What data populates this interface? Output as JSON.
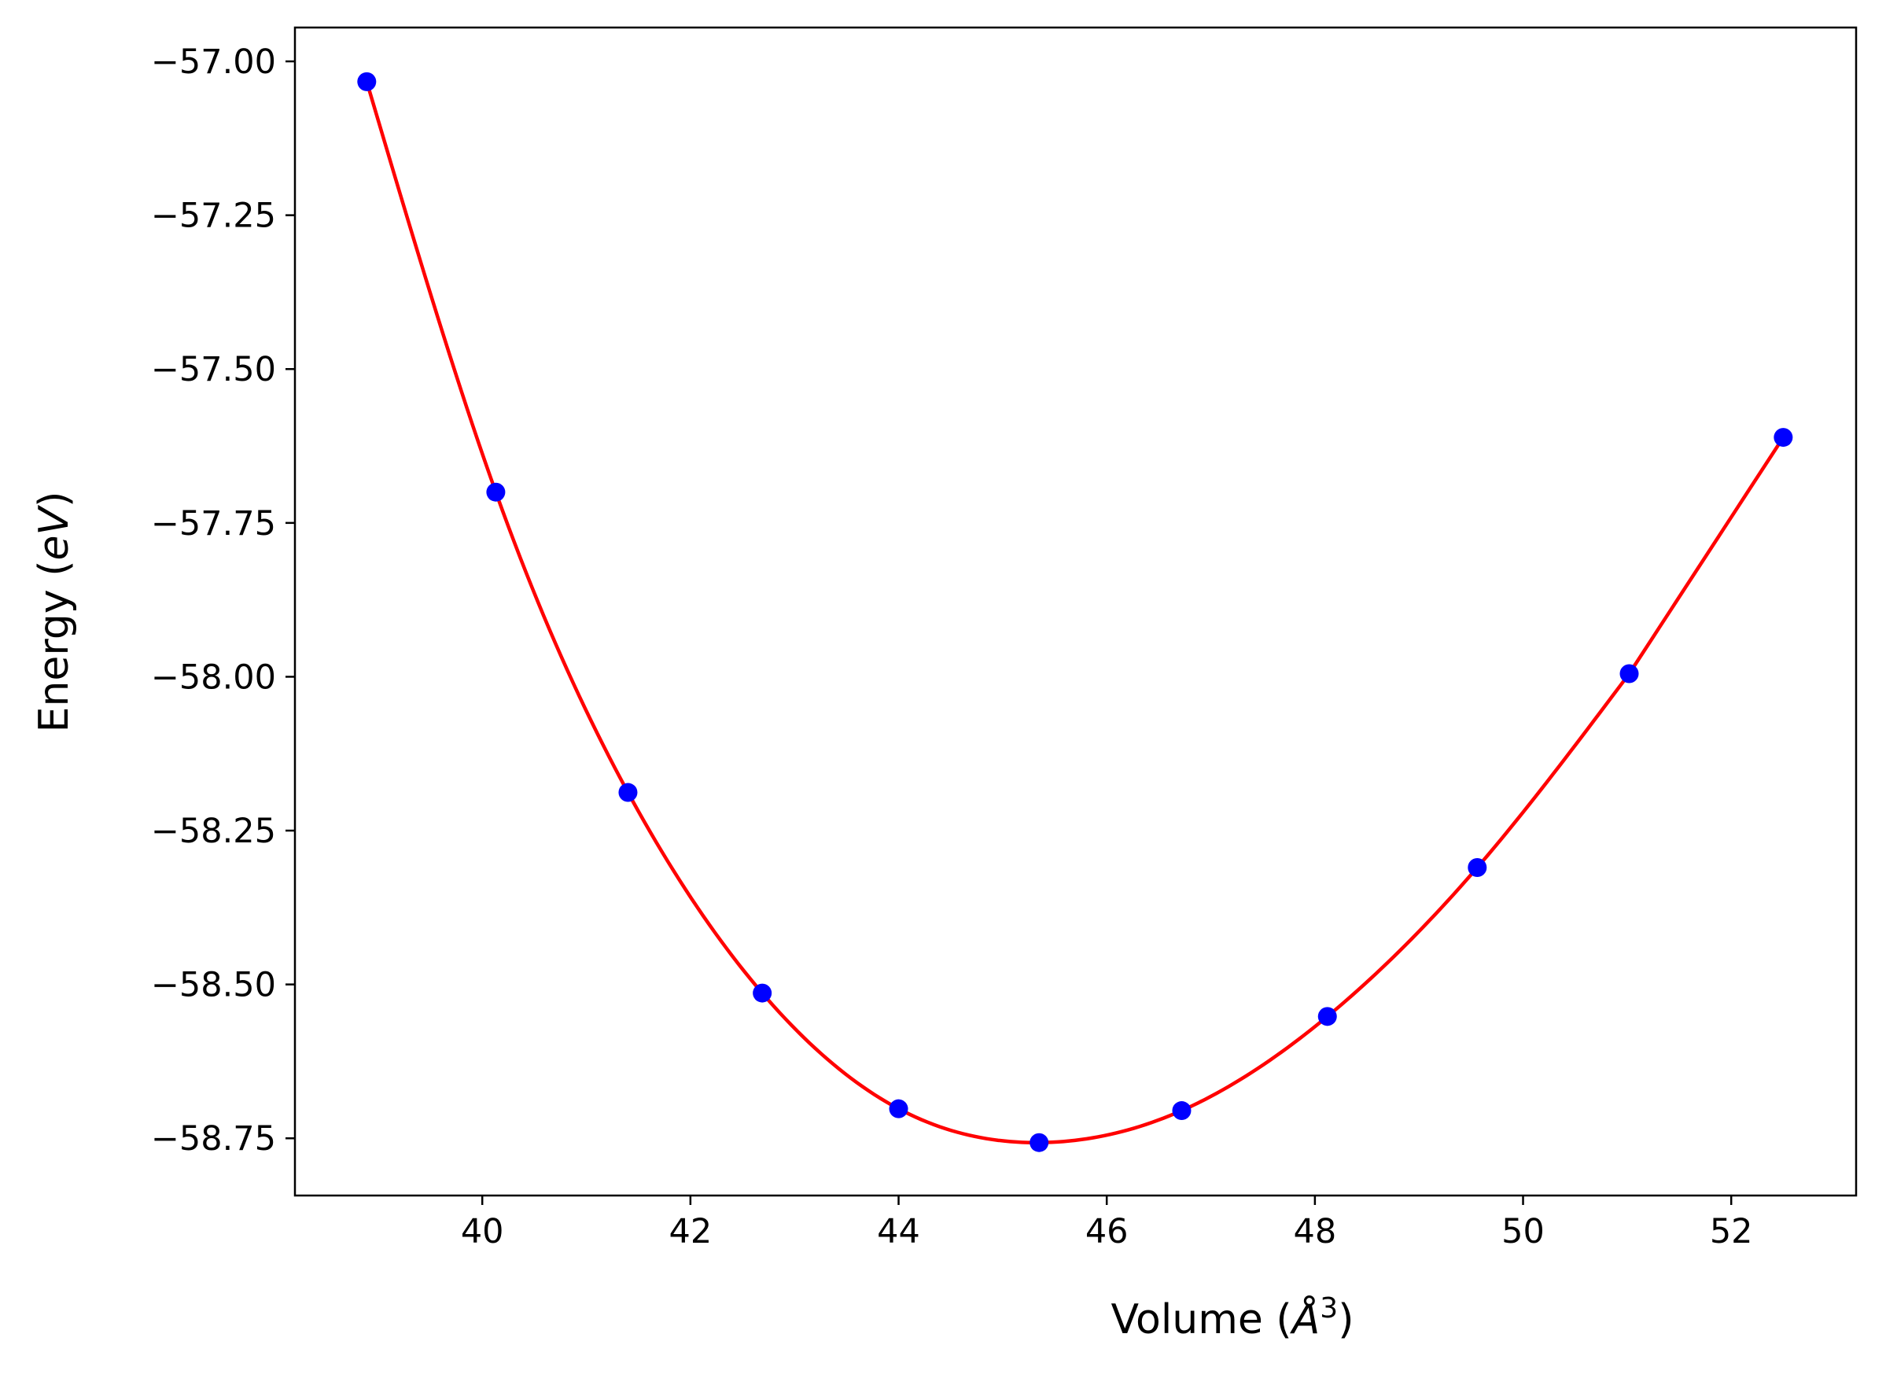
{
  "chart_data": {
    "type": "scatter",
    "title": "",
    "xlabel": "Volume",
    "xlabel_unit": "Å",
    "xlabel_exponent": "3",
    "ylabel": "Energy",
    "ylabel_unit": "eV",
    "xlim": [
      38.2,
      53.2
    ],
    "ylim": [
      -58.843,
      -56.945
    ],
    "x_ticks": [
      40,
      42,
      44,
      46,
      48,
      50,
      52
    ],
    "x_tick_labels": [
      "40",
      "42",
      "44",
      "46",
      "48",
      "50",
      "52"
    ],
    "y_ticks": [
      -57.0,
      -57.25,
      -57.5,
      -57.75,
      -58.0,
      -58.25,
      -58.5,
      -58.75
    ],
    "y_tick_labels": [
      "−57.00",
      "−57.25",
      "−57.50",
      "−57.75",
      "−58.00",
      "−58.25",
      "−58.50",
      "−58.75"
    ],
    "grid": false,
    "series": [
      {
        "name": "data",
        "kind": "points",
        "color": "#0000ff",
        "x": [
          38.89,
          40.13,
          41.4,
          42.69,
          44.0,
          45.35,
          46.72,
          48.12,
          49.56,
          51.02,
          52.5
        ],
        "y": [
          -57.033,
          -57.7,
          -58.188,
          -58.514,
          -58.702,
          -58.757,
          -58.705,
          -58.552,
          -58.31,
          -57.995,
          -57.611
        ]
      },
      {
        "name": "fit",
        "kind": "line",
        "color": "#ff0000",
        "x": [
          38.89,
          40.13,
          41.4,
          42.69,
          44.0,
          45.35,
          46.72,
          48.12,
          49.56,
          51.02,
          52.5
        ],
        "y": [
          -57.033,
          -57.7,
          -58.188,
          -58.514,
          -58.702,
          -58.757,
          -58.705,
          -58.552,
          -58.31,
          -57.995,
          -57.611
        ]
      }
    ]
  }
}
